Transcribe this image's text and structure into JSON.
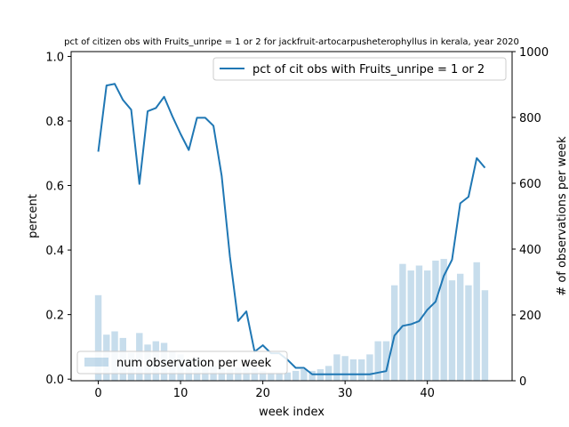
{
  "chart_data": {
    "type": "bar+line",
    "title": "pct of citizen obs with Fruits_unripe = 1 or 2 for jackfruit-artocarpusheterophyllus in kerala, year 2020",
    "xlabel": "week index",
    "ylabel_left": "percent",
    "ylabel_right": "# of observations per week",
    "xlim": [
      -3.3,
      50.3
    ],
    "ylim_left": [
      -0.005,
      1.015
    ],
    "ylim_right": [
      0,
      1000
    ],
    "x_ticks": [
      0,
      10,
      20,
      30,
      40
    ],
    "y_ticks_left": [
      0.0,
      0.2,
      0.4,
      0.6,
      0.8,
      1.0
    ],
    "y_ticks_left_labels": [
      "0.0",
      "0.2",
      "0.4",
      "0.6",
      "0.8",
      "1.0"
    ],
    "y_ticks_right": [
      0,
      200,
      400,
      600,
      800,
      1000
    ],
    "grid": false,
    "x": [
      0,
      1,
      2,
      3,
      4,
      5,
      6,
      7,
      8,
      9,
      10,
      11,
      12,
      13,
      14,
      15,
      16,
      17,
      18,
      19,
      20,
      21,
      22,
      23,
      24,
      25,
      26,
      27,
      28,
      29,
      30,
      31,
      32,
      33,
      34,
      35,
      36,
      37,
      38,
      39,
      40,
      41,
      42,
      43,
      44,
      45,
      46,
      47
    ],
    "series": [
      {
        "name": "pct of cit obs with Fruits_unripe = 1 or 2",
        "type": "line",
        "axis": "left",
        "color": "#1f77b4",
        "values": [
          0.705,
          0.91,
          0.915,
          0.865,
          0.835,
          0.605,
          0.83,
          0.84,
          0.875,
          0.815,
          0.76,
          0.71,
          0.81,
          0.81,
          0.785,
          0.63,
          0.38,
          0.18,
          0.21,
          0.085,
          0.105,
          0.08,
          0.08,
          0.06,
          0.035,
          0.035,
          0.015,
          0.015,
          0.015,
          0.015,
          0.015,
          0.015,
          0.015,
          0.015,
          0.02,
          0.025,
          0.135,
          0.165,
          0.17,
          0.18,
          0.215,
          0.24,
          0.32,
          0.37,
          0.545,
          0.565,
          0.685,
          0.655
        ]
      },
      {
        "name": "num observation per week",
        "type": "bar",
        "axis": "right",
        "color": "#1f77b4",
        "opacity": 0.25,
        "values": [
          260,
          140,
          150,
          130,
          85,
          145,
          110,
          120,
          115,
          90,
          80,
          65,
          70,
          60,
          45,
          40,
          35,
          40,
          45,
          40,
          30,
          25,
          25,
          25,
          30,
          35,
          30,
          35,
          45,
          80,
          75,
          65,
          65,
          80,
          120,
          120,
          290,
          355,
          335,
          350,
          335,
          365,
          370,
          305,
          325,
          290,
          360,
          275
        ]
      }
    ],
    "legend_line_label": "pct of cit obs with Fruits_unripe = 1 or 2",
    "legend_bar_label": "num observation per week",
    "legend_line_position": "upper right",
    "legend_bar_position": "lower left"
  }
}
